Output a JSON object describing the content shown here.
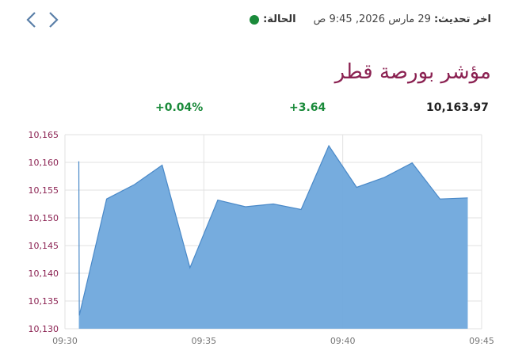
{
  "nav": {
    "prev_icon": "chevron-left-icon",
    "next_icon": "chevron-right-icon"
  },
  "status": {
    "label": "الحالة:",
    "dot_color": "#1a8a3a"
  },
  "update": {
    "label": "اخر تحديث:",
    "value": "29 مارس 2026, 9:45 ص"
  },
  "title": "مؤشر بورصة قطر",
  "stats": {
    "value": "10,163.97",
    "change": "+3.64",
    "percent": "+0.04%"
  },
  "colors": {
    "title": "#8b2252",
    "positive": "#1a8a3a",
    "area_fill": "#6fa8dc",
    "area_stroke": "#4a89c8"
  },
  "chart_data": {
    "type": "area",
    "title": "",
    "xlabel": "",
    "ylabel": "",
    "x_ticks": [
      "09:30",
      "09:35",
      "09:40",
      "09:45"
    ],
    "y_ticks": [
      "10,130",
      "10,135",
      "10,140",
      "10,145",
      "10,150",
      "10,155",
      "10,160",
      "10,165"
    ],
    "xlim": [
      "09:30",
      "09:45"
    ],
    "ylim": [
      10130,
      10165
    ],
    "grid": true,
    "x": [
      "09:30:30",
      "09:30:31",
      "09:31:30",
      "09:32:30",
      "09:33:30",
      "09:34:30",
      "09:35:30",
      "09:36:30",
      "09:37:30",
      "09:38:30",
      "09:39:30",
      "09:40:30",
      "09:41:30",
      "09:42:30",
      "09:43:30",
      "09:44:30"
    ],
    "series": [
      {
        "values": [
          10160.2,
          10132.4,
          10153.4,
          10156.0,
          10159.5,
          10141.0,
          10153.2,
          10152.0,
          10152.5,
          10151.5,
          10163.0,
          10155.5,
          10157.3,
          10159.9,
          10153.4,
          10153.6
        ]
      }
    ]
  }
}
